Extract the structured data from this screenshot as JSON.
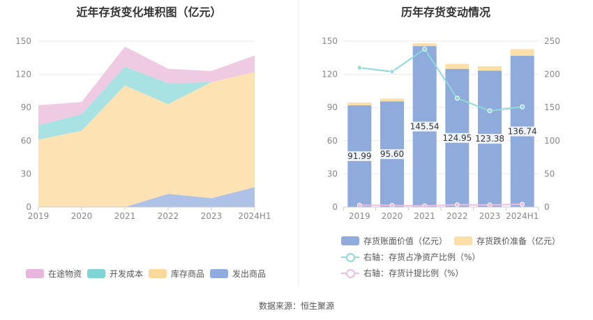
{
  "left_title": "近年存货变化堆积图（亿元）",
  "right_title": "历年存货变动情况",
  "source": "数据来源：恒生聚源",
  "chart_data": [
    {
      "type": "area",
      "stacked": true,
      "x": [
        "2019",
        "2020",
        "2021",
        "2022",
        "2023",
        "2024H1"
      ],
      "ylim": [
        0,
        150
      ],
      "yticks": [
        "0",
        "30",
        "60",
        "90",
        "120",
        "150"
      ],
      "series": [
        {
          "name": "发出商品",
          "color": "#aec2e8",
          "values": [
            0,
            0,
            0,
            12,
            8,
            18
          ]
        },
        {
          "name": "库存商品",
          "color": "#fde3b4",
          "values": [
            61,
            69,
            110,
            81,
            105,
            104
          ]
        },
        {
          "name": "开发成本",
          "color": "#a9e2e2",
          "values": [
            13,
            15,
            17,
            19,
            0,
            0
          ]
        },
        {
          "name": "在途物资",
          "color": "#eecbe3",
          "values": [
            18,
            11,
            18,
            13,
            10,
            15
          ]
        }
      ],
      "legend": [
        "在途物资",
        "开发成本",
        "库存商品",
        "发出商品"
      ],
      "legend_colors": [
        "#e8b6dc",
        "#7fd5d5",
        "#fcd99a",
        "#8fabe0"
      ]
    },
    {
      "type": "bar",
      "stacked": true,
      "categories": [
        "2019",
        "2020",
        "2021",
        "2022",
        "2023",
        "2024H1"
      ],
      "ylim": [
        0,
        150
      ],
      "yticks": [
        "0",
        "30",
        "60",
        "90",
        "120",
        "150"
      ],
      "y2lim": [
        0,
        250
      ],
      "y2ticks": [
        "0",
        "50",
        "100",
        "150",
        "200",
        "250"
      ],
      "series": [
        {
          "name": "存货账面价值（亿元）",
          "color": "#8fabdc",
          "values": [
            91.99,
            95.6,
            145.54,
            124.95,
            123.38,
            136.74
          ],
          "labels": [
            "91.99",
            "95.60",
            "145.54",
            "124.95",
            "123.38",
            "136.74"
          ]
        },
        {
          "name": "存货跌价准备（亿元）",
          "color": "#fde0a8",
          "values": [
            2.5,
            2.5,
            2.5,
            4.5,
            4.0,
            6.0
          ]
        },
        {
          "name": "右轴：存货占净资产比例（%）",
          "type": "line",
          "axis": "right",
          "color": "#8fd9d9",
          "values": [
            210,
            204,
            238,
            164,
            145,
            151
          ]
        },
        {
          "name": "右轴：存货计提比例（%）",
          "type": "line",
          "axis": "right",
          "color": "#f0bde0",
          "values": [
            2.7,
            2.6,
            1.7,
            3.5,
            3.1,
            4.2
          ]
        }
      ]
    }
  ]
}
